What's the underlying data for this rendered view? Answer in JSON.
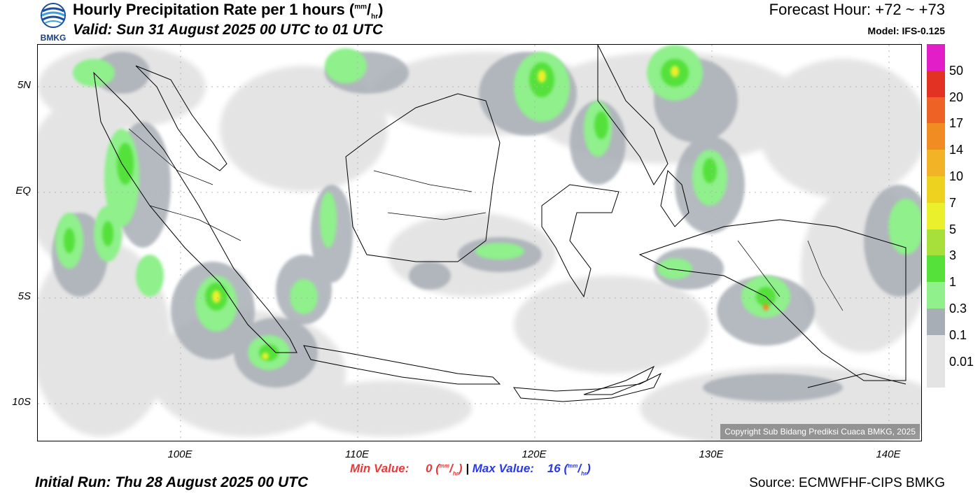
{
  "header": {
    "logo_text": "BMKG",
    "title_main": "Hourly Precipitation Rate per 1 hours (",
    "title_unit_num": "mm",
    "title_unit_den": "hr",
    "title_close": ")",
    "valid": "Valid: Sun 31 August 2025 00 UTC to 01 UTC",
    "forecast_hour": "Forecast Hour: +72 ~ +73",
    "model": "Model: IFS-0.125"
  },
  "map": {
    "lat_labels": [
      "5N",
      "EQ",
      "5S",
      "10S"
    ],
    "lon_labels": [
      "100E",
      "110E",
      "120E",
      "130E",
      "140E"
    ],
    "copyright": "Copyright Sub Bidang Prediksi Cuaca BMKG, 2025",
    "colors": {
      "sea": "#ffffff",
      "land_outline": "#000000",
      "grid": "#b4b4b4"
    }
  },
  "legend": {
    "levels": [
      {
        "label": "50",
        "color": "#e11ec8"
      },
      {
        "label": "20",
        "color": "#e13223"
      },
      {
        "label": "17",
        "color": "#ee6226"
      },
      {
        "label": "14",
        "color": "#f08c22"
      },
      {
        "label": "10",
        "color": "#f2b326"
      },
      {
        "label": "7",
        "color": "#eed220"
      },
      {
        "label": "5",
        "color": "#eaf02c"
      },
      {
        "label": "3",
        "color": "#a8e03a"
      },
      {
        "label": "1",
        "color": "#55e13a"
      },
      {
        "label": "0.3",
        "color": "#8ff08c"
      },
      {
        "label": "0.1",
        "color": "#a8aeb6"
      },
      {
        "label": "0.01",
        "color": "#e4e4e4"
      }
    ],
    "top_color": "#e11ec8"
  },
  "footer": {
    "min_label": "Min Value:",
    "min_value": "0",
    "sep": "|",
    "max_label": "Max Value:",
    "max_value": "16",
    "unit_num": "mm",
    "unit_den": "hr",
    "initial_run": "Initial Run: Thu 28 August 2025 00 UTC",
    "source": "Source: ECMWFHF-CIPS BMKG",
    "min_color": "#e83a3a",
    "max_color": "#2a3ae8"
  }
}
